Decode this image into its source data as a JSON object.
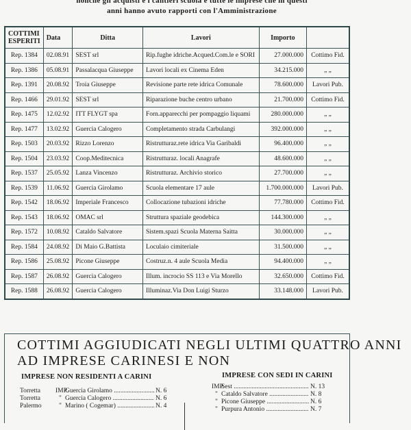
{
  "intro": {
    "line1": "nonché gli acquisti e i cantieri scuola e tutte le imprese che in questi",
    "line2": "anni  hanno avuto rapporti  con l'Amministrazione"
  },
  "table": {
    "headers": [
      "COTTIMI ESPERITI",
      "Data",
      "Ditta",
      "Lavori",
      "Importo",
      ""
    ],
    "rows": [
      [
        "Rep. 1384",
        "02.08.91",
        "SEST srl",
        "Rip.fughe idriche.Acqued.Com.le e SORI",
        "27.000.000",
        "Cottimo Fid."
      ],
      [
        "Rep. 1386",
        "05.08.91",
        "Passalacqua  Giuseppe",
        "Lavori locali ex Cinema Eden",
        "34.215.000",
        "„   „"
      ],
      [
        "Rep. 1391",
        "20.08.92",
        "Troia Giuseppe",
        "Revisione parte rete idrica Comunale",
        "78.600.000",
        "Lavori Pub."
      ],
      [
        "Rep. 1466",
        "29.01.92",
        "SEST srl",
        "Riparazione buche centro urbano",
        "21.700.000",
        "Cottimo Fid."
      ],
      [
        "Rep. 1475",
        "12.02.92",
        "ITT FLYGT spa",
        "Forn.apparecchi per  pompaggio liquami",
        "280.000.000",
        "„   „"
      ],
      [
        "Rep. 1477",
        "13.02.92",
        "Guercia Calogero",
        "Completamento strada Carbulangi",
        "392.000.000",
        "„   „"
      ],
      [
        "Rep. 1503",
        "20.03.92",
        "Rizzo Lorenzo",
        "Ristrutturaz.rete idrica Via Garibaldi",
        "96.400.000",
        "„   „"
      ],
      [
        "Rep. 1504",
        "23.03.92",
        "Coop.Meditecnica",
        "Ristrutturaz. locali Anagrafe",
        "48.600.000",
        "„   „"
      ],
      [
        "Rep. 1537",
        "25.05.92",
        "Lanza Vincenzo",
        "Ristrutturaz. Archivio storico",
        "27.700.000",
        "„   „"
      ],
      [
        "Rep. 1539",
        "11.06.92",
        "Guercia Girolamo",
        "Scuola elementare 17 aule",
        "1.700.000.000",
        "Lavori Pub."
      ],
      [
        "Rep. 1542",
        "18.06.92",
        "Imperiale Francesco",
        "Collocazione tubazioni idriche",
        "77.780.000",
        "Cottimo Fid."
      ],
      [
        "Rep. 1543",
        "18.06.92",
        "OMAC srl",
        "Struttura spaziale  geodebica",
        "144.300.000",
        "„   „"
      ],
      [
        "Rep. 1572",
        "10.08.92",
        "Cataldo Salvatore",
        "Sistem.spazi Scuola Materna Saitta",
        "30.000.000",
        "„   „"
      ],
      [
        "Rep. 1584",
        "24.08.92",
        "Di Maio G.Battista",
        "Loculaio cimiteriale",
        "31.500.000",
        "„   „"
      ],
      [
        "Rep. 1586",
        "25.08.92",
        "Picone Giuseppe",
        "Costruz.n. 4 aule Scuola Media",
        "94.400.000",
        "„   „"
      ],
      [
        "Rep. 1587",
        "26.08.92",
        "Guercia Calogero",
        "Illum. incrocio SS 113 e Via Morello",
        "32.650.000",
        "Cottimo Fid."
      ],
      [
        "Rep. 1588",
        "26.08.92",
        "Guercia Calogero",
        "Illuminaz.Via Don Luigi Sturzo",
        "33.148.000",
        "Lavori Pub."
      ]
    ]
  },
  "summary": {
    "title_line1": "COTTIMI AGGIUDICATI NEGLI ULTIMI  QUATTRO ANNI",
    "title_line2": "AD IMPRESE CARINESI E NON",
    "non_residenti": {
      "heading": "IMPRESE NON RESIDENTI A CARINI",
      "items": [
        {
          "place": "Torretta",
          "mark": "IMP.",
          "name": "Guercia Girolamo",
          "count": "N. 6"
        },
        {
          "place": "Torretta",
          "mark": "\"",
          "name": "Guercia Calogero",
          "count": "N. 6"
        },
        {
          "place": "Palermo",
          "mark": "\"",
          "name": "Marino  ( Cogemar)",
          "count": "N. 4"
        }
      ]
    },
    "sedi_carini": {
      "heading": "IMPRESE CON SEDI IN CARINI",
      "items": [
        {
          "mark": "IMP.",
          "name": "Sest",
          "count": "N. 13"
        },
        {
          "mark": "\"",
          "name": "Cataldo Salvatore",
          "count": "N.  8"
        },
        {
          "mark": "\"",
          "name": "Picone Giuseppe",
          "count": "N.  6"
        },
        {
          "mark": "\"",
          "name": "Purpura Antonio",
          "count": "N.  7"
        }
      ]
    }
  },
  "colors": {
    "rule": "#3a5252",
    "paper": "#f6f7f4",
    "ink": "#1c1c1c"
  }
}
